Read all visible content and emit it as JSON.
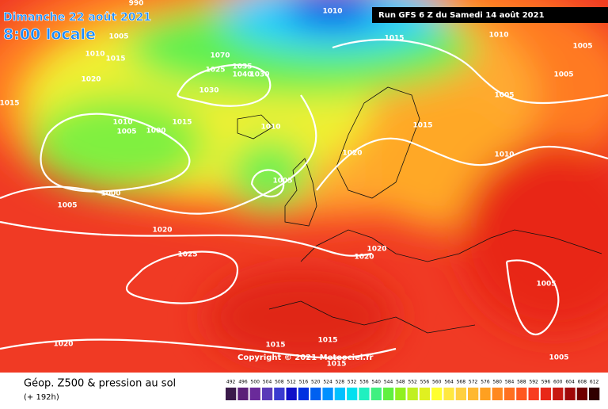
{
  "header": {
    "date": "Dimanche 22 août 2021",
    "time": "8:00 locale",
    "run": "Run GFS 6 Z du Samedi 14 août 2021"
  },
  "copyright": "Copyright © 2021 Meteociel.fr",
  "footer": {
    "title": "Géop. Z500 & pression au sol",
    "lead": "(+ 192h)"
  },
  "isobar_labels": [
    990,
    1010,
    1010,
    1005,
    1015,
    1010,
    1015,
    1070,
    1035,
    1005,
    1005,
    1020,
    1025,
    1040,
    1030,
    1030,
    1015,
    1005,
    1010,
    1015,
    1010,
    1015,
    1005,
    1000,
    1020,
    1010,
    1005,
    1000,
    1005,
    1020,
    1020,
    1020,
    1025,
    1005,
    1015,
    1015,
    1020,
    1005,
    1015
  ],
  "scale": {
    "values": [
      492,
      496,
      500,
      504,
      508,
      512,
      516,
      520,
      524,
      528,
      532,
      536,
      540,
      544,
      548,
      552,
      556,
      560,
      564,
      568,
      572,
      576,
      580,
      584,
      588,
      592,
      596,
      600,
      604,
      608,
      612
    ],
    "colors": [
      "#3a1a4a",
      "#5a1f78",
      "#6a2a9a",
      "#5a3ab8",
      "#3a3ad0",
      "#1010c8",
      "#0030e0",
      "#0060f0",
      "#0090ff",
      "#00c0ff",
      "#00e0f0",
      "#20f0c0",
      "#40f080",
      "#60f040",
      "#90f020",
      "#c0f020",
      "#e0f020",
      "#ffff30",
      "#ffe840",
      "#ffd040",
      "#ffb830",
      "#ffa020",
      "#ff8820",
      "#ff7020",
      "#ff5820",
      "#f83c20",
      "#e82818",
      "#c81810",
      "#a00808",
      "#700000",
      "#300000"
    ]
  }
}
